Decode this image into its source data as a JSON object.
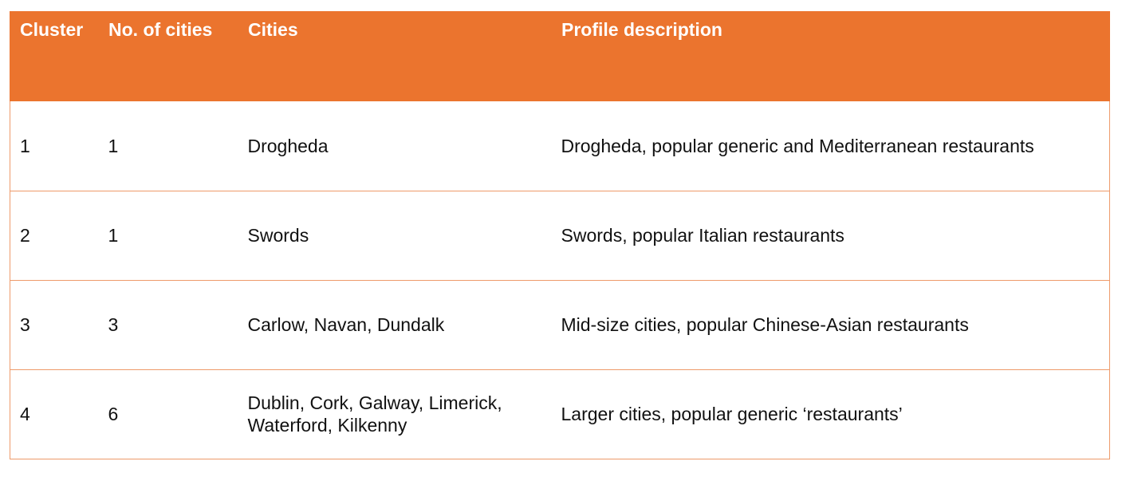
{
  "table": {
    "headers": [
      "Cluster",
      "No. of cities",
      "Cities",
      "Profile description"
    ],
    "rows": [
      {
        "cluster": "1",
        "count": "1",
        "cities": "Drogheda",
        "profile": "Drogheda, popular generic and Mediterranean restaurants"
      },
      {
        "cluster": "2",
        "count": "1",
        "cities": "Swords",
        "profile": "Swords, popular Italian restaurants"
      },
      {
        "cluster": "3",
        "count": "3",
        "cities": "Carlow, Navan, Dundalk",
        "profile": "Mid-size cities, popular Chinese-Asian restaurants"
      },
      {
        "cluster": "4",
        "count": "6",
        "cities": "Dublin, Cork, Galway, Limerick, Waterford, Kilkenny",
        "profile": "Larger cities, popular generic ‘restaurants’"
      }
    ]
  },
  "colors": {
    "header_bg": "#EB742E",
    "header_text": "#FFFFFF",
    "border": "#EE9A6A"
  }
}
